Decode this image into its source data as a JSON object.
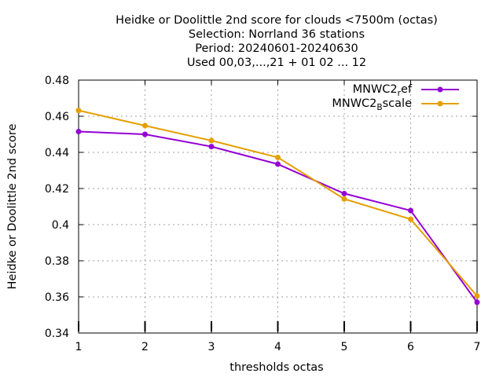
{
  "chart_data": {
    "type": "line",
    "title_lines": [
      "Heidke or Doolittle 2nd score  for clouds <7500m (octas)",
      "Selection: Norrland     36 stations",
      "Period: 20240601-20240630",
      "Used 00,03,...,21 + 01 02 ... 12"
    ],
    "xlabel": "thresholds octas",
    "ylabel": "Heidke or Doolittle 2nd score",
    "x": [
      1,
      2,
      3,
      4,
      5,
      6,
      7
    ],
    "xlim": [
      1,
      7
    ],
    "ylim": [
      0.34,
      0.48
    ],
    "x_ticks": [
      "1",
      "2",
      "3",
      "4",
      "5",
      "6",
      "7"
    ],
    "y_ticks": [
      "0.34",
      "0.36",
      "0.38",
      "0.4",
      "0.42",
      "0.44",
      "0.46",
      "0.48"
    ],
    "y_tick_values": [
      0.34,
      0.36,
      0.38,
      0.4,
      0.42,
      0.44,
      0.46,
      0.48
    ],
    "grid": true,
    "legend_position": "top-right",
    "series": [
      {
        "name": "MNWC2_ref",
        "legend_base": "MNWC2",
        "legend_sub": "r",
        "legend_rest": "ef",
        "color": "#9400d3",
        "values": [
          0.4515,
          0.45,
          0.4432,
          0.4335,
          0.4172,
          0.4078,
          0.357
        ]
      },
      {
        "name": "MNWC2_Bscale",
        "legend_base": "MNWC2",
        "legend_sub": "B",
        "legend_rest": "scale",
        "color": "#e69f00",
        "values": [
          0.4632,
          0.4548,
          0.4465,
          0.4372,
          0.4142,
          0.403,
          0.3605
        ]
      }
    ]
  }
}
